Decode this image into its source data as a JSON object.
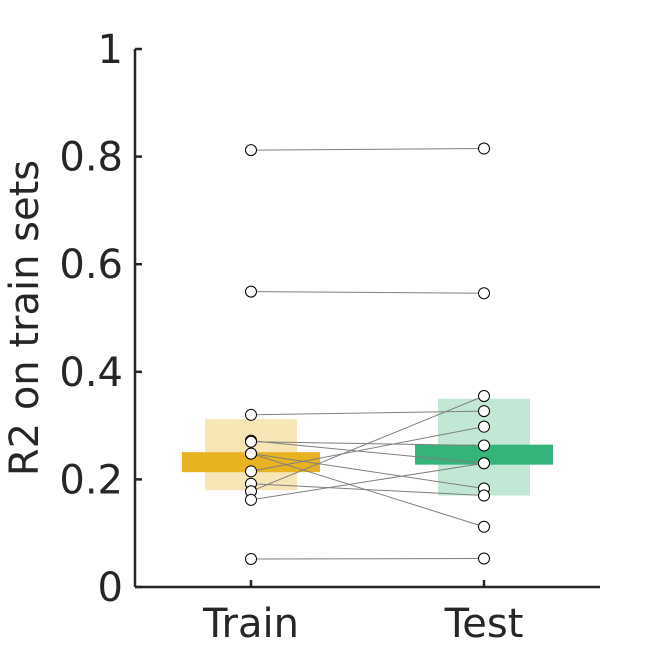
{
  "chart_data": {
    "type": "scatter",
    "ylabel": "R2 on train sets",
    "ylim": [
      0,
      1
    ],
    "yticks": [
      0,
      0.2,
      0.4,
      0.6,
      0.8,
      1
    ],
    "ytick_labels": [
      "0",
      "0.2",
      "0.4",
      "0.6",
      "0.8",
      "1"
    ],
    "categories": [
      "Train",
      "Test"
    ],
    "groups": [
      {
        "category": "Train",
        "color": "#E8B220",
        "ci_color": "#F6E5B5",
        "mean": 0.232,
        "ci": [
          0.18,
          0.312
        ]
      },
      {
        "category": "Test",
        "color": "#34B478",
        "ci_color": "#C2E8D5",
        "mean": 0.246,
        "ci": [
          0.17,
          0.35
        ]
      }
    ],
    "pairs": [
      {
        "train": 0.812,
        "test": 0.815
      },
      {
        "train": 0.549,
        "test": 0.546
      },
      {
        "train": 0.32,
        "test": 0.327
      },
      {
        "train": 0.272,
        "test": 0.23
      },
      {
        "train": 0.27,
        "test": 0.263
      },
      {
        "train": 0.248,
        "test": 0.112
      },
      {
        "train": 0.248,
        "test": 0.183
      },
      {
        "train": 0.215,
        "test": 0.298
      },
      {
        "train": 0.192,
        "test": 0.17
      },
      {
        "train": 0.178,
        "test": 0.355
      },
      {
        "train": 0.162,
        "test": 0.23
      },
      {
        "train": 0.052,
        "test": 0.053
      }
    ],
    "grid": false,
    "legend": "none"
  }
}
